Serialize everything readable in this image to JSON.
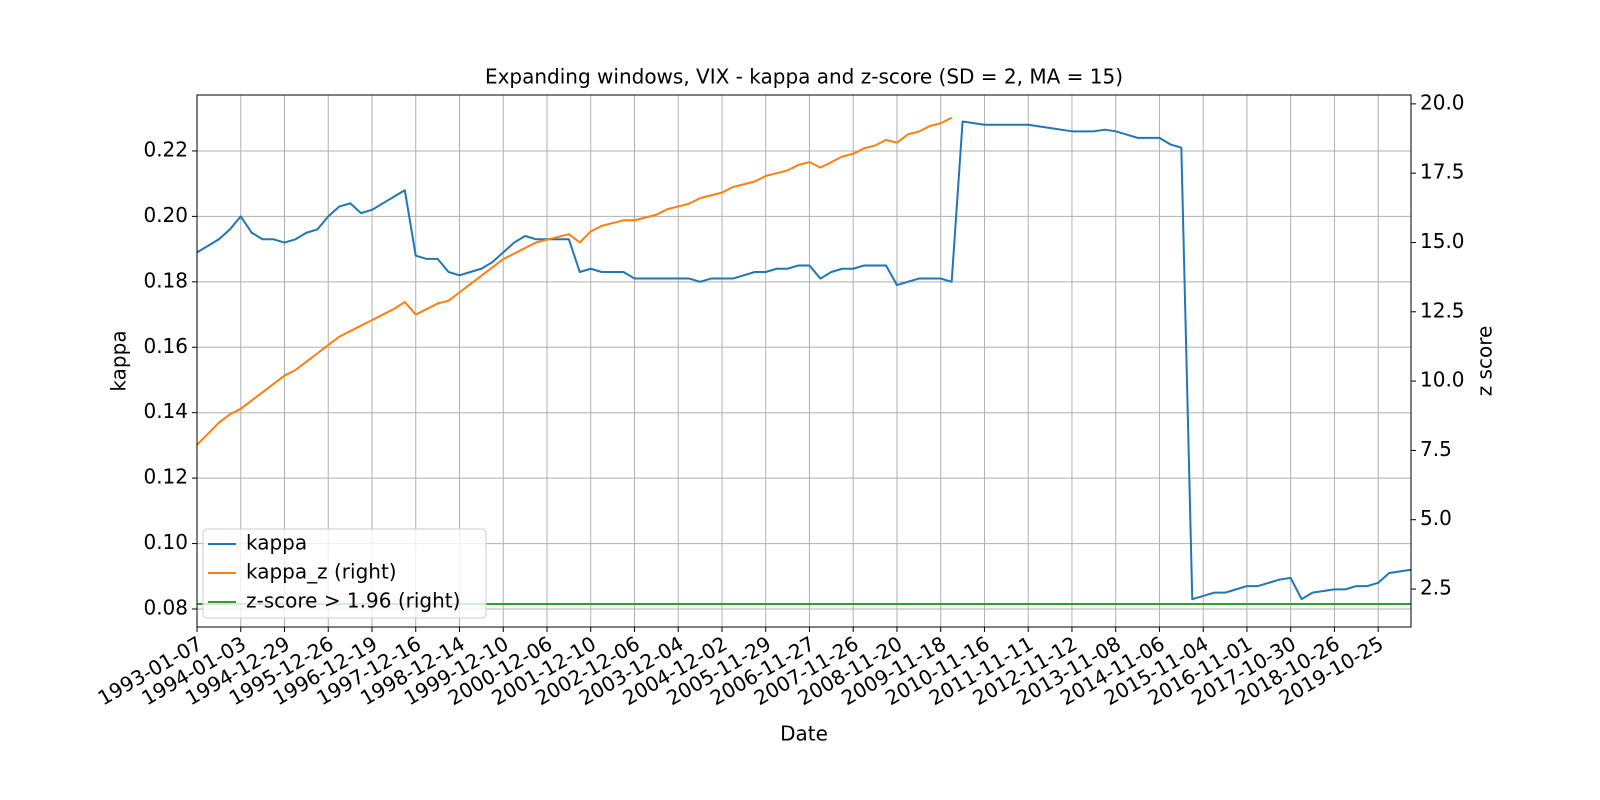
{
  "chart_data": {
    "type": "line",
    "title": "Expanding windows, VIX - kappa and z-score (SD = 2, MA = 15)",
    "x_label": "Date",
    "y_label": "kappa",
    "y2_label": "z score",
    "categories": [
      "1993-01-07",
      null,
      null,
      null,
      "1994-01-03",
      null,
      null,
      null,
      "1994-12-29",
      null,
      null,
      null,
      "1995-12-26",
      null,
      null,
      null,
      "1996-12-19",
      null,
      null,
      null,
      "1997-12-16",
      null,
      null,
      null,
      "1998-12-14",
      null,
      null,
      null,
      "1999-12-10",
      null,
      null,
      null,
      "2000-12-06",
      null,
      null,
      null,
      "2001-12-10",
      null,
      null,
      null,
      "2002-12-06",
      null,
      null,
      null,
      "2003-12-04",
      null,
      null,
      null,
      "2004-12-02",
      null,
      null,
      null,
      "2005-11-29",
      null,
      null,
      null,
      "2006-11-27",
      null,
      null,
      null,
      "2007-11-26",
      null,
      null,
      null,
      "2008-11-20",
      null,
      null,
      null,
      "2009-11-18",
      null,
      null,
      null,
      "2010-11-16",
      null,
      null,
      null,
      "2011-11-11",
      null,
      null,
      null,
      "2012-11-12",
      null,
      null,
      null,
      "2013-11-08",
      null,
      null,
      null,
      "2014-11-06",
      null,
      null,
      null,
      "2015-11-04",
      null,
      null,
      null,
      "2016-11-01",
      null,
      null,
      null,
      "2017-10-30",
      null,
      null,
      null,
      "2018-10-26",
      null,
      null,
      null,
      "2019-10-25",
      null,
      null,
      null
    ],
    "series": [
      {
        "name": "kappa",
        "color": "#1f77b4",
        "axis": "y",
        "values": [
          0.189,
          0.191,
          0.193,
          0.196,
          0.2,
          0.195,
          0.193,
          0.193,
          0.192,
          0.193,
          0.195,
          0.196,
          0.2,
          0.203,
          0.204,
          0.201,
          0.202,
          0.204,
          0.206,
          0.208,
          0.188,
          0.187,
          0.187,
          0.183,
          0.182,
          0.183,
          0.184,
          0.186,
          0.189,
          0.192,
          0.194,
          0.193,
          0.193,
          0.193,
          0.193,
          0.183,
          0.184,
          0.183,
          0.183,
          0.183,
          0.181,
          0.181,
          0.181,
          0.181,
          0.181,
          0.181,
          0.18,
          0.181,
          0.181,
          0.181,
          0.182,
          0.183,
          0.183,
          0.184,
          0.184,
          0.185,
          0.185,
          0.181,
          0.183,
          0.184,
          0.184,
          0.185,
          0.185,
          0.185,
          0.179,
          0.18,
          0.181,
          0.181,
          0.181,
          0.18,
          0.229,
          0.2285,
          0.228,
          0.228,
          0.228,
          0.228,
          0.228,
          0.2275,
          0.227,
          0.2265,
          0.226,
          0.226,
          0.226,
          0.2265,
          0.226,
          0.225,
          0.224,
          0.224,
          0.224,
          0.222,
          0.221,
          0.083,
          0.084,
          0.085,
          0.085,
          0.086,
          0.087,
          0.087,
          0.088,
          0.089,
          0.0895,
          0.083,
          0.085,
          0.0855,
          0.086,
          0.086,
          0.087,
          0.087,
          0.088,
          0.091,
          0.0915,
          0.092
        ]
      },
      {
        "name": "kappa_z (right)",
        "color": "#ff7f0e",
        "axis": "y2",
        "values": [
          7.7,
          8.1,
          8.5,
          8.8,
          9.0,
          9.3,
          9.6,
          9.9,
          10.2,
          10.4,
          10.7,
          11.0,
          11.3,
          11.6,
          11.8,
          12.0,
          12.2,
          12.4,
          12.6,
          12.85,
          12.4,
          12.6,
          12.8,
          12.9,
          13.2,
          13.5,
          13.8,
          14.1,
          14.4,
          14.6,
          14.8,
          15.0,
          15.1,
          15.2,
          15.3,
          15.0,
          15.4,
          15.6,
          15.7,
          15.8,
          15.8,
          15.9,
          16.0,
          16.2,
          16.3,
          16.4,
          16.6,
          16.7,
          16.8,
          17.0,
          17.1,
          17.2,
          17.4,
          17.5,
          17.6,
          17.8,
          17.9,
          17.7,
          17.9,
          18.1,
          18.2,
          18.4,
          18.5,
          18.7,
          18.6,
          18.9,
          19.0,
          19.2,
          19.3,
          19.5,
          null,
          null,
          null,
          null,
          null,
          null,
          null,
          null,
          null,
          null,
          null,
          null,
          null,
          null,
          null,
          null,
          null,
          null,
          null,
          null,
          null,
          null,
          null,
          null,
          null,
          null,
          null,
          null,
          null,
          null,
          null,
          null,
          null,
          null,
          null,
          null,
          null,
          null,
          null,
          null,
          null,
          null
        ]
      },
      {
        "name": "z-score > 1.96 (right)",
        "color": "#2ca02c",
        "axis": "y2",
        "values": [
          1.96,
          1.96,
          1.96,
          1.96,
          1.96,
          1.96,
          1.96,
          1.96,
          1.96,
          1.96,
          1.96,
          1.96,
          1.96,
          1.96,
          1.96,
          1.96,
          1.96,
          1.96,
          1.96,
          1.96,
          1.96,
          1.96,
          1.96,
          1.96,
          1.96,
          1.96,
          1.96,
          1.96,
          1.96,
          1.96,
          1.96,
          1.96,
          1.96,
          1.96,
          1.96,
          1.96,
          1.96,
          1.96,
          1.96,
          1.96,
          1.96,
          1.96,
          1.96,
          1.96,
          1.96,
          1.96,
          1.96,
          1.96,
          1.96,
          1.96,
          1.96,
          1.96,
          1.96,
          1.96,
          1.96,
          1.96,
          1.96,
          1.96,
          1.96,
          1.96,
          1.96,
          1.96,
          1.96,
          1.96,
          1.96,
          1.96,
          1.96,
          1.96,
          1.96,
          1.96,
          1.96,
          1.96,
          1.96,
          1.96,
          1.96,
          1.96,
          1.96,
          1.96,
          1.96,
          1.96,
          1.96,
          1.96,
          1.96,
          1.96,
          1.96,
          1.96,
          1.96,
          1.96,
          1.96,
          1.96,
          1.96,
          1.96,
          1.96,
          1.96,
          1.96,
          1.96,
          1.96,
          1.96,
          1.96,
          1.96,
          1.96,
          1.96,
          1.96,
          1.96,
          1.96,
          1.96,
          1.96,
          1.96,
          1.96,
          1.96,
          1.96,
          1.96
        ]
      }
    ],
    "ylim": [
      0.0745,
      0.2371
    ],
    "yticks": [
      0.08,
      {
        "value": 0.1,
        "label": "0.10"
      },
      0.12,
      0.14,
      0.16,
      0.18,
      {
        "value": 0.2,
        "label": "0.20"
      },
      0.22
    ],
    "y2lim": [
      1.13,
      20.32
    ],
    "y2ticks": [
      2.5,
      {
        "value": 5,
        "label": "5.0"
      },
      7.5,
      {
        "value": 10,
        "label": "10.0"
      },
      12.5,
      {
        "value": 15,
        "label": "15.0"
      },
      17.5,
      {
        "value": 20,
        "label": "20.0"
      }
    ],
    "grid": true,
    "legend": "lower left"
  }
}
